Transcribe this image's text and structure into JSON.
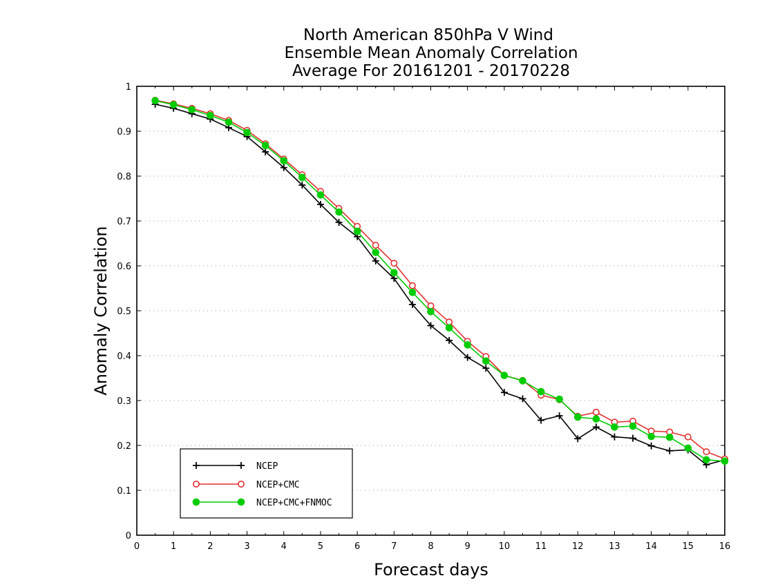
{
  "chart_data": {
    "type": "line",
    "title_lines": [
      "North American 850hPa V Wind",
      "Ensemble Mean Anomaly Correlation",
      "Average For 20161201 - 20170228"
    ],
    "xlabel": "Forecast days",
    "ylabel": "Anomaly Correlation",
    "xlim": [
      0,
      16
    ],
    "ylim": [
      0,
      1
    ],
    "xticks": [
      0,
      1,
      2,
      3,
      4,
      5,
      6,
      7,
      8,
      9,
      10,
      11,
      12,
      13,
      14,
      15,
      16
    ],
    "yticks": [
      0,
      0.1,
      0.2,
      0.3,
      0.4,
      0.5,
      0.6,
      0.7,
      0.8,
      0.9,
      1
    ],
    "ytick_labels": [
      "0",
      "0.1",
      "0.2",
      "0.3",
      "0.4",
      "0.5",
      "0.6",
      "0.7",
      "0.8",
      "0.9",
      "1"
    ],
    "grid": "horizontal dotted",
    "legend_position": "bottom-left",
    "x": [
      0.5,
      1,
      1.5,
      2,
      2.5,
      3,
      3.5,
      4,
      4.5,
      5,
      5.5,
      6,
      6.5,
      7,
      7.5,
      8,
      8.5,
      9,
      9.5,
      10,
      10.5,
      11,
      11.5,
      12,
      12.5,
      13,
      13.5,
      14,
      14.5,
      15,
      15.5,
      16
    ],
    "series": [
      {
        "name": "NCEP",
        "color": "#000000",
        "marker": "plus",
        "values": [
          0.96,
          0.951,
          0.939,
          0.927,
          0.908,
          0.888,
          0.854,
          0.819,
          0.78,
          0.737,
          0.697,
          0.665,
          0.611,
          0.572,
          0.514,
          0.467,
          0.434,
          0.396,
          0.372,
          0.318,
          0.304,
          0.256,
          0.266,
          0.215,
          0.241,
          0.219,
          0.216,
          0.199,
          0.188,
          0.19,
          0.157,
          0.168
        ]
      },
      {
        "name": "NCEP+CMC",
        "color": "#e03030",
        "marker": "open-circle",
        "values": [
          0.969,
          0.961,
          0.951,
          0.939,
          0.924,
          0.902,
          0.872,
          0.838,
          0.803,
          0.766,
          0.728,
          0.688,
          0.646,
          0.606,
          0.556,
          0.511,
          0.475,
          0.432,
          0.398,
          0.356,
          0.345,
          0.312,
          0.302,
          0.265,
          0.274,
          0.252,
          0.254,
          0.232,
          0.23,
          0.219,
          0.186,
          0.17
        ]
      },
      {
        "name": "NCEP+CMC+FNMOC",
        "color": "#00cc00",
        "marker": "filled-circle",
        "values": [
          0.968,
          0.959,
          0.948,
          0.935,
          0.92,
          0.897,
          0.868,
          0.834,
          0.797,
          0.758,
          0.72,
          0.677,
          0.63,
          0.585,
          0.541,
          0.498,
          0.462,
          0.424,
          0.388,
          0.356,
          0.344,
          0.32,
          0.303,
          0.263,
          0.259,
          0.241,
          0.243,
          0.22,
          0.218,
          0.194,
          0.168,
          0.165
        ]
      }
    ]
  }
}
